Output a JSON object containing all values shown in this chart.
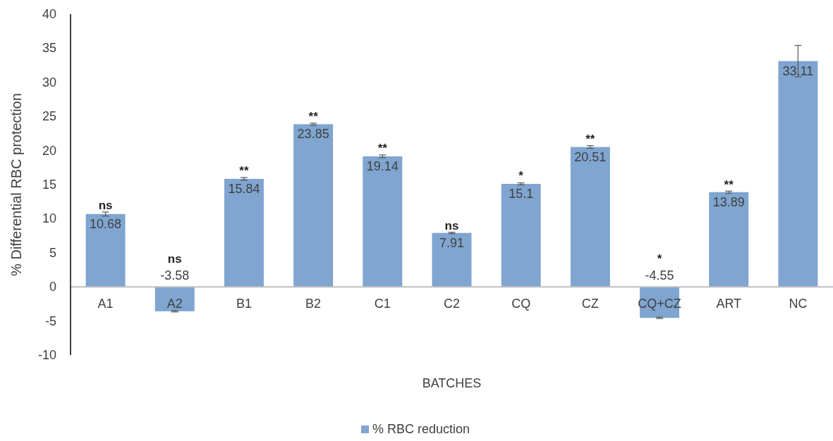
{
  "chart_data": {
    "type": "bar",
    "xlabel": "BATCHES",
    "ylabel": "% Differential RBC protection",
    "categories": [
      "A1",
      "A2",
      "B1",
      "B2",
      "C1",
      "C2",
      "CQ",
      "CZ",
      "CQ+CZ",
      "ART",
      "NC"
    ],
    "series": [
      {
        "name": "% RBC reduction",
        "color": "#7fa5d0",
        "values": [
          10.68,
          -3.58,
          15.84,
          23.85,
          19.14,
          7.91,
          15.1,
          20.51,
          -4.55,
          13.89,
          33.11
        ],
        "errors": [
          0.3,
          0.1,
          0.2,
          0.15,
          0.2,
          0.1,
          0.15,
          0.2,
          0.1,
          0.15,
          2.3
        ]
      }
    ],
    "data_labels": true,
    "ylim": [
      -10,
      40
    ],
    "yticks": [
      -10,
      -5,
      0,
      5,
      10,
      15,
      20,
      25,
      30,
      35,
      40
    ],
    "grid": false,
    "legend": "bottom",
    "annotations": [
      {
        "text": "ns",
        "x": "A1",
        "y": 11
      },
      {
        "text": "ns",
        "x": "A2",
        "y": 0
      },
      {
        "text": "**",
        "x": "B1",
        "y": 16
      },
      {
        "text": "**",
        "x": "B2",
        "y": 24
      },
      {
        "text": "**",
        "x": "C1",
        "y": 19.3
      },
      {
        "text": "ns",
        "x": "C2",
        "y": 8
      },
      {
        "text": "*",
        "x": "CQ",
        "y": 15.3
      },
      {
        "text": "**",
        "x": "CZ",
        "y": 20.7
      },
      {
        "text": "*",
        "x": "CQ+CZ",
        "y": 0
      },
      {
        "text": "**",
        "x": "ART",
        "y": 14
      }
    ]
  }
}
